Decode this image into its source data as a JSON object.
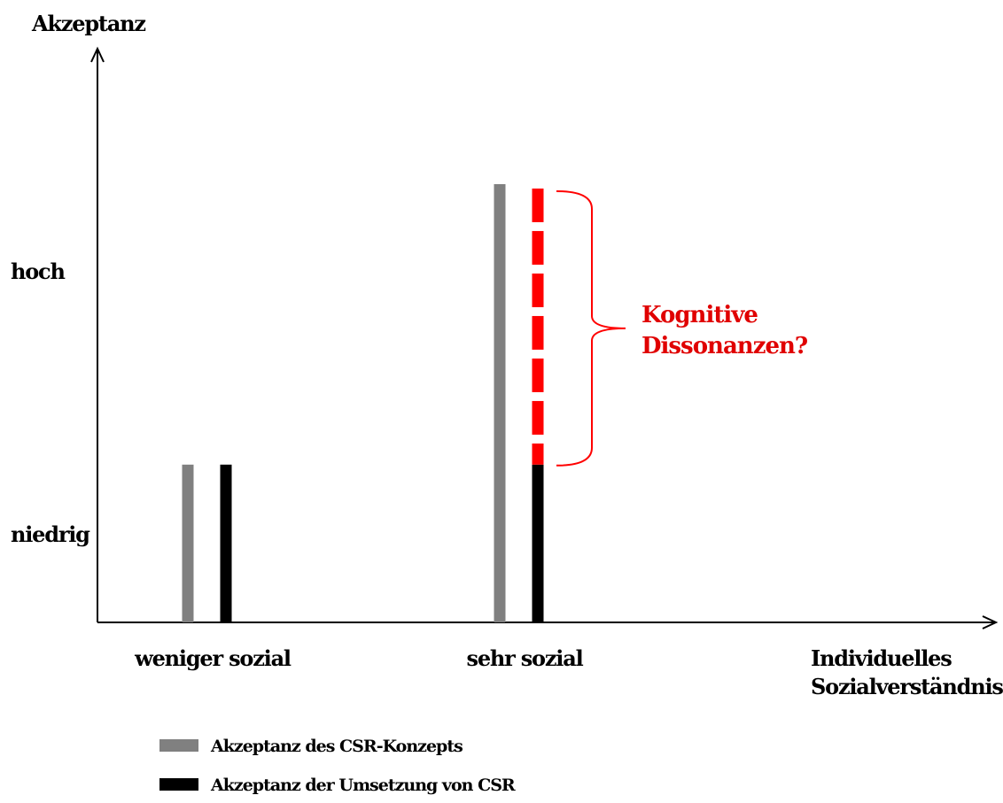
{
  "chart_data": {
    "type": "bar",
    "ylabel": "Akzeptanz",
    "xlabel_lines": [
      "Individuelles",
      "Sozialverständnis"
    ],
    "y_tick_labels": [
      "hoch",
      "niedrig"
    ],
    "y_ticks": [
      {
        "label": "hoch",
        "value": 0.8
      },
      {
        "label": "niedrig",
        "value": 0.2
      }
    ],
    "ylim": [
      0,
      1
    ],
    "categories": [
      "weniger sozial",
      "sehr sozial"
    ],
    "series": [
      {
        "name": "Akzeptanz des CSR-Konzepts",
        "color": "#808080",
        "values": [
          0.36,
          1.0
        ]
      },
      {
        "name": "Akzeptanz der Umsetzung von CSR",
        "color": "#000000",
        "values": [
          0.36,
          0.36
        ]
      }
    ],
    "gap_series": {
      "category": "sehr sozial",
      "from": 0.36,
      "to": 0.99,
      "color": "#ff0000",
      "style": "dashed"
    },
    "annotation_lines": [
      "Kognitive",
      "Dissonanzen?"
    ],
    "annotation_color": "#e00000",
    "legend_position": "bottom-left",
    "grid": false
  }
}
